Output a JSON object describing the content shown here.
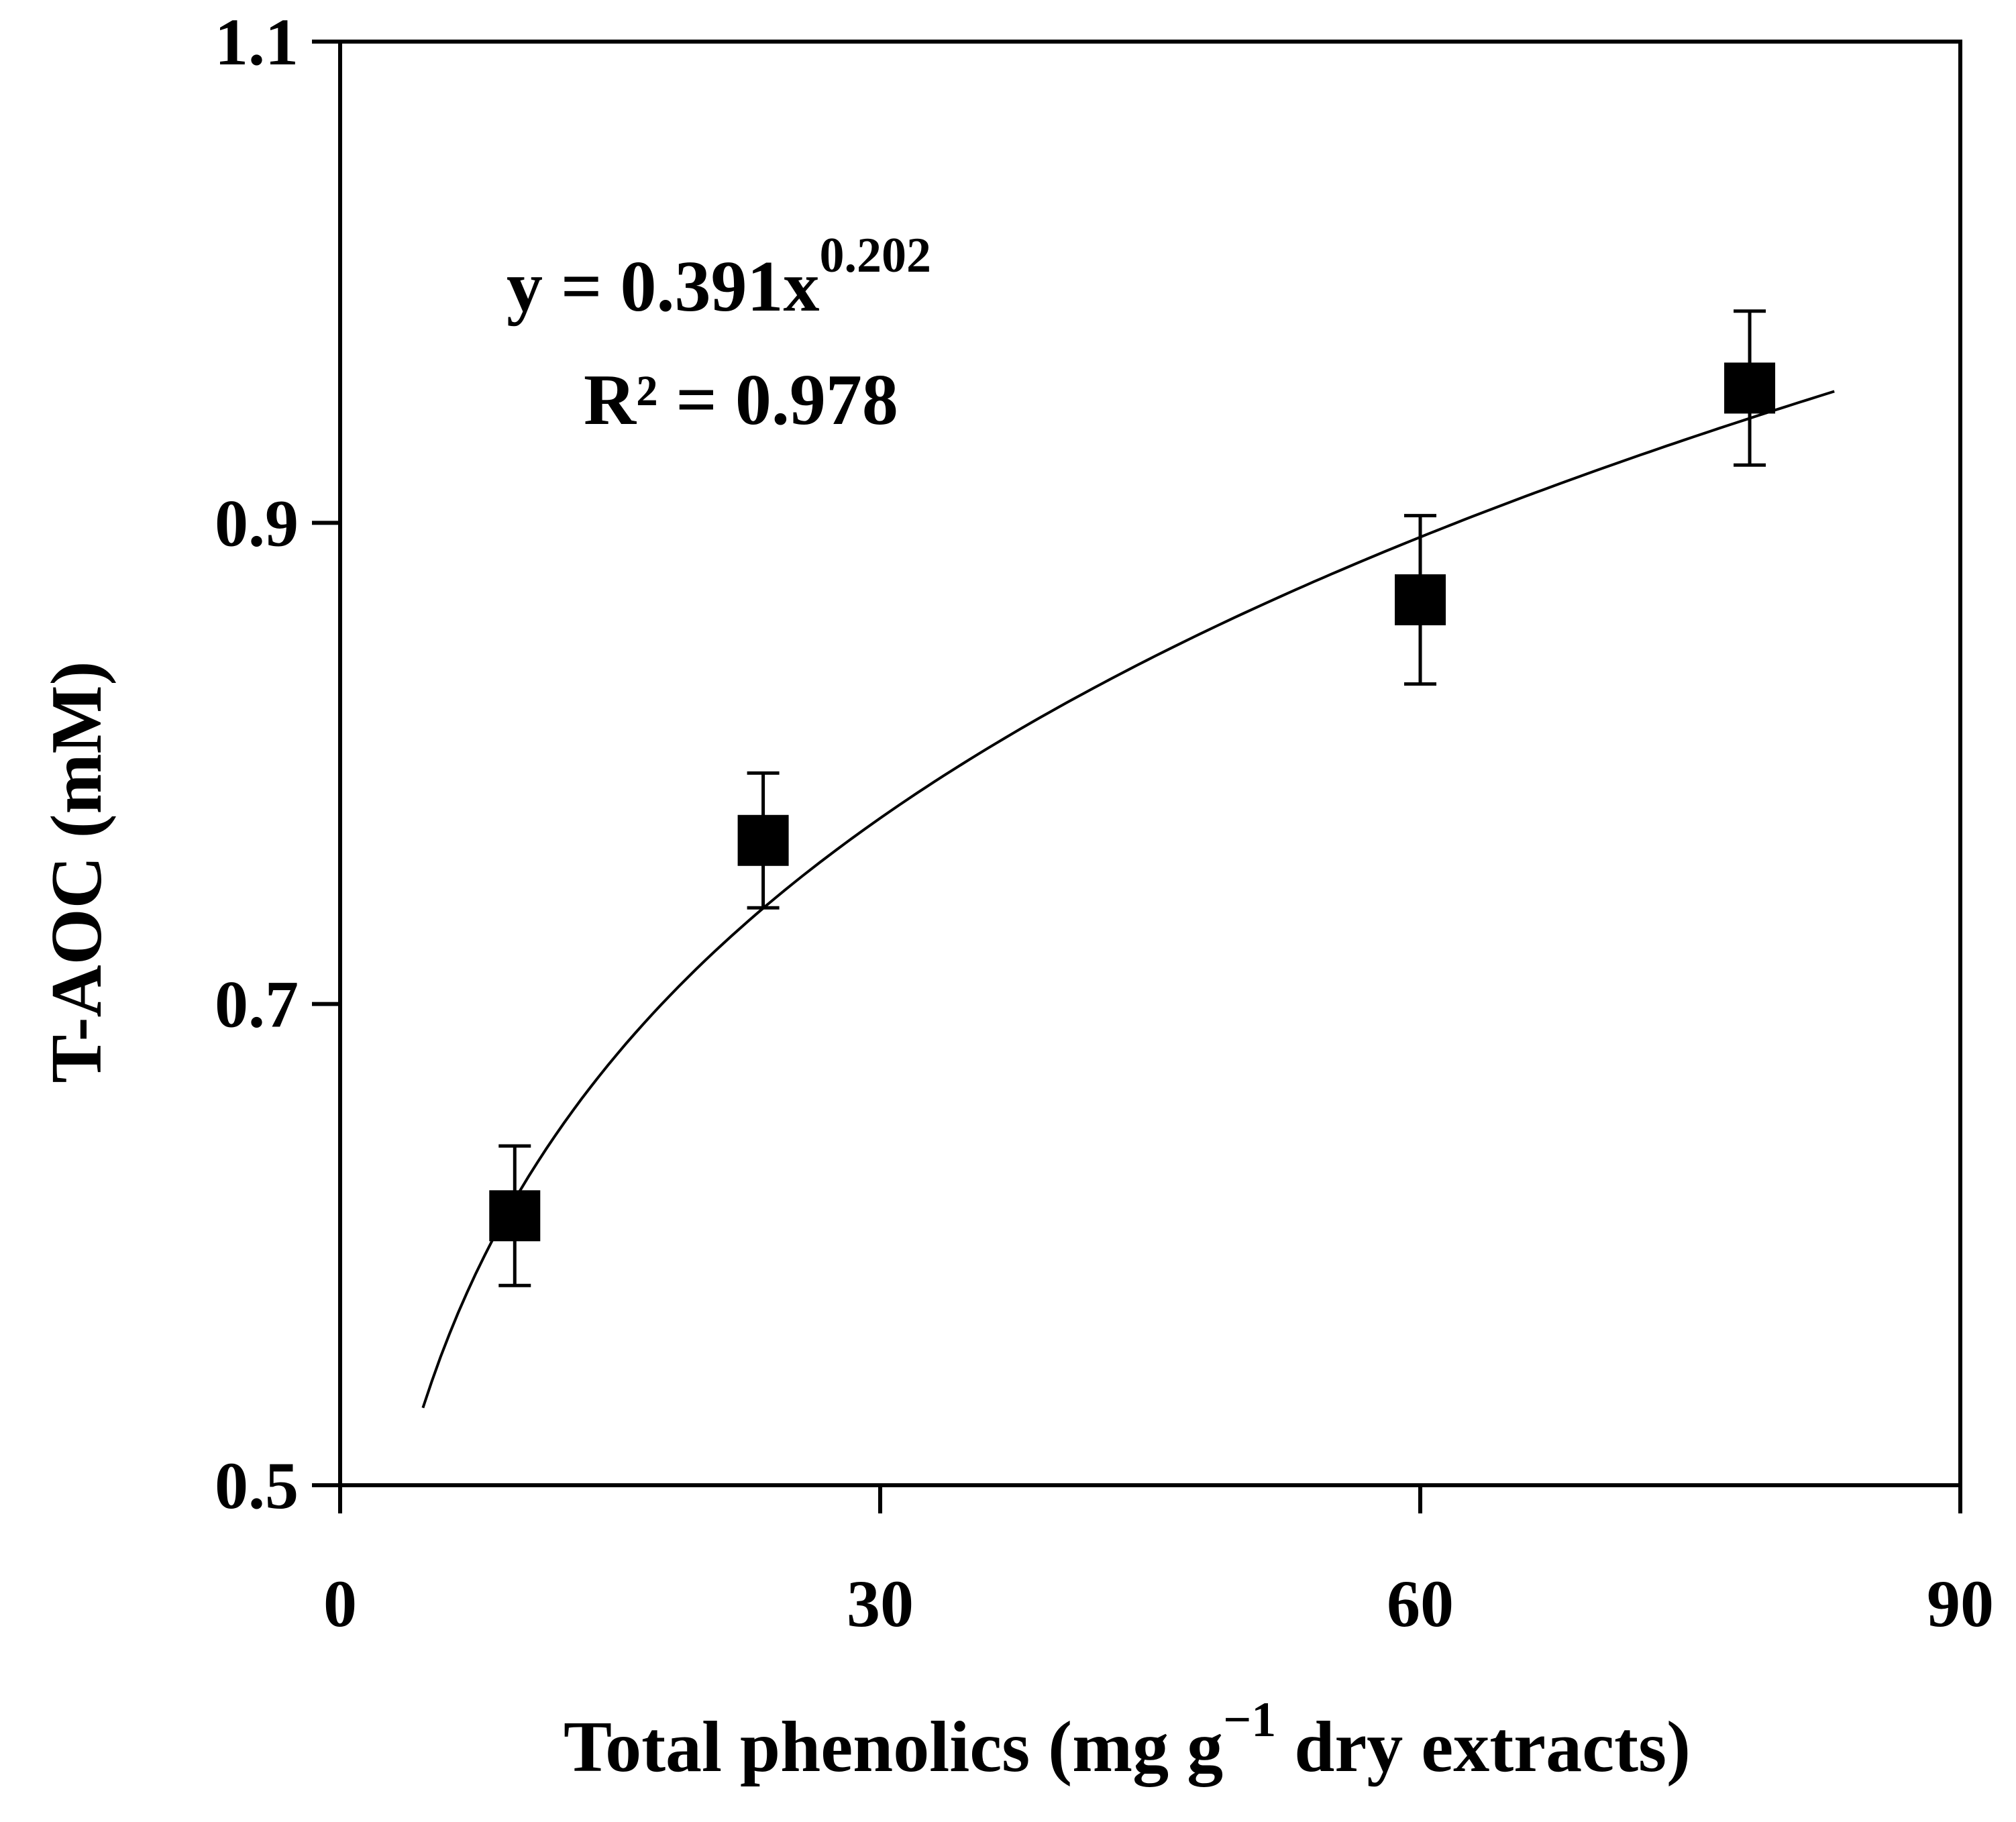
{
  "chart_data": {
    "type": "scatter",
    "xlabel_main": "Total phenolics (mg g",
    "xlabel_sup": "−1",
    "xlabel_tail": " dry extracts)",
    "ylabel": "T-AOC (mM)",
    "xlim": [
      0,
      90
    ],
    "ylim": [
      0.5,
      1.1
    ],
    "xticks": [
      "0",
      "30",
      "60",
      "90"
    ],
    "yticks": [
      "0.5",
      "0.7",
      "0.9",
      "1.1"
    ],
    "series": [
      {
        "name": "T-AOC",
        "marker": "square",
        "points": [
          {
            "x": 9.7,
            "y": 0.612,
            "err": 0.029
          },
          {
            "x": 23.5,
            "y": 0.768,
            "err": 0.028
          },
          {
            "x": 60.0,
            "y": 0.868,
            "err": 0.035
          },
          {
            "x": 78.3,
            "y": 0.956,
            "err": 0.032
          }
        ]
      }
    ],
    "fit": {
      "type": "power",
      "a": 0.391,
      "b": 0.202,
      "x_range": [
        4.6,
        83
      ],
      "equation_main": "y = 0.391x",
      "equation_exp": "0.202",
      "r2_text": "R² = 0.978"
    }
  }
}
